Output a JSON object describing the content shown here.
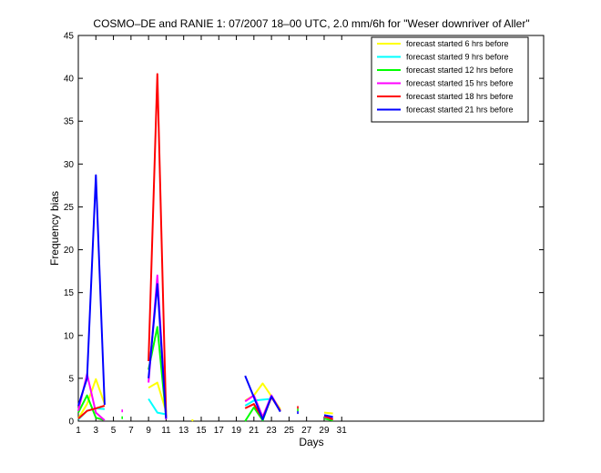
{
  "chart_data": {
    "type": "line",
    "title": "COSMO–DE and RANIE 1: 07/2007 18–00 UTC, 2.0 mm/6h for \"Weser downriver of Aller\"",
    "xlabel": "Days",
    "ylabel": "Frequency bias",
    "xlim": [
      1,
      54
    ],
    "ylim": [
      0,
      45
    ],
    "xticks": [
      1,
      3,
      5,
      7,
      9,
      11,
      13,
      15,
      17,
      19,
      21,
      23,
      25,
      27,
      29,
      31
    ],
    "yticks": [
      0,
      5,
      10,
      15,
      20,
      25,
      30,
      35,
      40,
      45
    ],
    "legend_position": "top-right",
    "grid": false,
    "series": [
      {
        "name": "forecast started 6 hrs before",
        "color": "#ffff00",
        "points": [
          [
            1,
            0.3
          ],
          [
            2,
            2.0
          ],
          [
            3,
            4.9
          ],
          [
            4,
            2.0
          ],
          null,
          [
            9,
            3.9
          ],
          [
            10,
            4.5
          ],
          [
            11,
            1.1
          ],
          null,
          [
            14,
            0.1
          ],
          null,
          [
            20,
            2.4
          ],
          [
            21,
            3.0
          ],
          [
            22,
            4.4
          ],
          [
            23,
            2.9
          ],
          [
            24,
            1.4
          ],
          null,
          [
            29,
            1.0
          ],
          [
            30,
            0.9
          ]
        ]
      },
      {
        "name": "forecast started 9 hrs before",
        "color": "#00ffff",
        "points": [
          [
            1,
            0.2
          ],
          [
            2,
            1.2
          ],
          [
            3,
            1.5
          ],
          [
            4,
            1.4
          ],
          null,
          [
            9,
            2.6
          ],
          [
            10,
            1.0
          ],
          [
            11,
            0.8
          ],
          null,
          [
            20,
            1.8
          ],
          [
            21,
            2.4
          ],
          [
            22,
            2.5
          ],
          [
            23,
            2.6
          ],
          null,
          [
            29,
            0.6
          ],
          [
            30,
            0.4
          ]
        ]
      },
      {
        "name": "forecast started 12 hrs before",
        "color": "#00ff00",
        "points": [
          [
            1,
            1.0
          ],
          [
            2,
            3.0
          ],
          [
            3,
            0.4
          ],
          [
            4,
            0.1
          ],
          null,
          [
            9,
            6.0
          ],
          [
            10,
            11.0
          ],
          [
            11,
            0.4
          ],
          null,
          [
            20,
            0.0
          ],
          [
            21,
            1.6
          ],
          [
            22,
            0.1
          ],
          [
            23,
            2.9
          ],
          [
            24,
            1.2
          ],
          null,
          [
            29,
            0.3
          ],
          [
            30,
            0.1
          ]
        ]
      },
      {
        "name": "forecast started 15 hrs before",
        "color": "#ff00ff",
        "points": [
          [
            1,
            1.2
          ],
          [
            2,
            5.5
          ],
          [
            3,
            1.0
          ],
          [
            4,
            0.1
          ],
          null,
          [
            9,
            4.5
          ],
          [
            10,
            17.0
          ],
          [
            11,
            0.2
          ],
          null,
          [
            20,
            2.3
          ],
          [
            21,
            3.0
          ],
          [
            22,
            0.5
          ],
          [
            23,
            3.0
          ],
          [
            24,
            1.2
          ],
          null,
          [
            29,
            0.5
          ],
          [
            30,
            0.3
          ]
        ]
      },
      {
        "name": "forecast started 18 hrs before",
        "color": "#ff0000",
        "points": [
          [
            1,
            0.3
          ],
          [
            2,
            1.2
          ],
          [
            3,
            1.5
          ],
          [
            4,
            1.8
          ],
          null,
          [
            9,
            7.0
          ],
          [
            10,
            40.5
          ],
          [
            11,
            0.5
          ],
          null,
          [
            20,
            1.5
          ],
          [
            21,
            2.0
          ],
          [
            22,
            0.3
          ],
          [
            23,
            2.8
          ],
          [
            24,
            1.2
          ],
          null,
          [
            29,
            0.6
          ],
          [
            30,
            0.2
          ]
        ]
      },
      {
        "name": "forecast started 21 hrs before",
        "color": "#0000ff",
        "points": [
          [
            1,
            1.8
          ],
          [
            2,
            5.0
          ],
          [
            3,
            28.7
          ],
          [
            4,
            1.9
          ],
          null,
          [
            9,
            5.0
          ],
          [
            10,
            16.0
          ],
          [
            11,
            0.3
          ],
          null,
          [
            20,
            5.3
          ],
          [
            21,
            2.8
          ],
          [
            22,
            0.2
          ],
          [
            23,
            2.9
          ],
          [
            24,
            1.1
          ],
          null,
          [
            29,
            0.7
          ],
          [
            30,
            0.5
          ]
        ]
      }
    ],
    "isolated_marks": [
      {
        "x": 6,
        "y": 1.2,
        "color": "#ff00ff"
      },
      {
        "x": 6,
        "y": 0.4,
        "color": "#00ff00"
      },
      {
        "x": 26,
        "y": 1.6,
        "color": "#ff0000"
      },
      {
        "x": 26,
        "y": 1.3,
        "color": "#00ff00"
      },
      {
        "x": 26,
        "y": 1.0,
        "color": "#0000ff"
      }
    ]
  }
}
